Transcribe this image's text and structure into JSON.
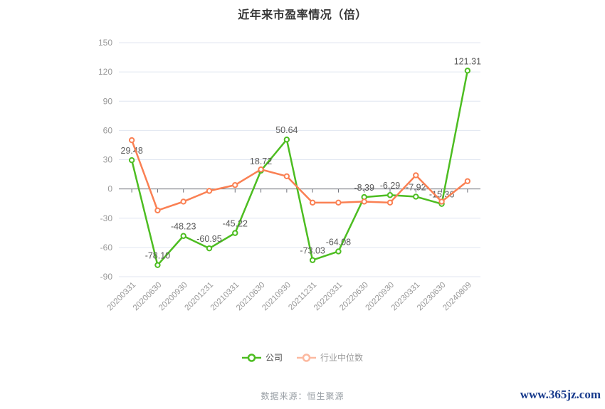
{
  "title": "近年来市盈率情况（倍）",
  "footer": {
    "source": "数据来源：恒生聚源",
    "site": "www.365jz.com"
  },
  "legend": {
    "items": [
      {
        "id": "company",
        "label": "公司",
        "color": "#4dbd21",
        "icon_opacity": 1,
        "text_color": "#4a4a4a"
      },
      {
        "id": "industry-median",
        "label": "行业中位数",
        "color": "#fa8053",
        "icon_opacity": 0.55,
        "text_color": "#999999"
      }
    ]
  },
  "chart_data": {
    "type": "line",
    "title": "近年来市盈率情况（倍）",
    "categories": [
      "20200331",
      "20200630",
      "20200930",
      "20201231",
      "20210331",
      "20210630",
      "20210930",
      "20211231",
      "20220331",
      "20220630",
      "20220930",
      "20230331",
      "20230630",
      "20240809"
    ],
    "series": [
      {
        "id": "company",
        "name": "公司",
        "color": "#4dbd21",
        "values": [
          29.48,
          -78.1,
          -48.23,
          -60.95,
          -45.22,
          18.72,
          50.64,
          -73.03,
          -64.08,
          -8.39,
          -6.29,
          -7.92,
          -15.36,
          121.31
        ],
        "point_labels": [
          "29.48",
          "-78.10",
          "-48.23",
          "-60.95",
          "-45.22",
          "18.72",
          "50.64",
          "-73.03",
          "-64.08",
          "-8.39",
          "-6.29",
          "-7.92",
          "-15.36",
          "121.31"
        ]
      },
      {
        "id": "industry-median",
        "name": "行业中位数",
        "color": "#fa8053",
        "values": [
          50,
          -22,
          -13,
          -2,
          4,
          20,
          13,
          -14,
          -14,
          -13,
          -14,
          14,
          -13,
          8
        ],
        "point_labels": null
      }
    ],
    "ylim": [
      -90,
      150
    ],
    "ytick_interval": 30,
    "ytick_labels": [
      "150",
      "120",
      "90",
      "60",
      "30",
      "0",
      "-30",
      "-60",
      "-90"
    ],
    "grid": true,
    "gridline_color": "#e0e6f1",
    "axis_color": "#6e7079",
    "axis_label_color": "#999999",
    "value_label_color": "#5a5a5a",
    "legend_position": "bottom",
    "xlabel": "",
    "ylabel": ""
  }
}
